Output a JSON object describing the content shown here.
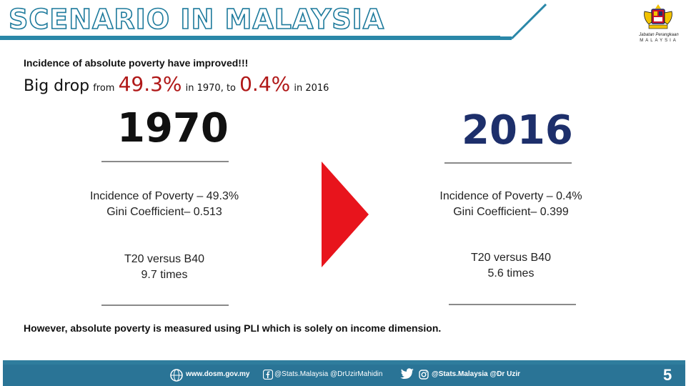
{
  "header": {
    "title": "SCENARIO IN MALAYSIA",
    "logo_text": [
      "Jabatan Perangkaan",
      "MALAYSIA"
    ],
    "accent_color": "#2a87a8"
  },
  "headline": "Incidence of absolute poverty have improved!!!",
  "big_drop": {
    "lead": "Big drop",
    "from": "from",
    "value_1970": "49.3%",
    "in_1970": "in 1970, to",
    "value_2016": "0.4%",
    "in_2016": "in 2016",
    "highlight_color": "#b01818"
  },
  "left": {
    "year": "1970",
    "poverty": "Incidence of Poverty – 49.3%",
    "gini": "Gini Coefficient– 0.513",
    "t20_label": "T20 versus B40",
    "t20_value": "9.7 times"
  },
  "right": {
    "year": "2016",
    "poverty": "Incidence of Poverty – 0.4%",
    "gini": "Gini Coefficient– 0.399",
    "t20_label": "T20 versus B40",
    "t20_value": "5.6 times",
    "year_color": "#1d2f6b"
  },
  "arrow": {
    "icon": "arrow-right-icon",
    "color": "#e8141c"
  },
  "footnote": "However, absolute poverty is measured using PLI which is solely on income dimension.",
  "footer": {
    "website": "www.dosm.gov.my",
    "handle1": "@Stats.Malaysia @DrUzirMahidin",
    "handle2": "@Stats.Malaysia @Dr  Uzir",
    "page": "5",
    "color": "#2a7496"
  }
}
